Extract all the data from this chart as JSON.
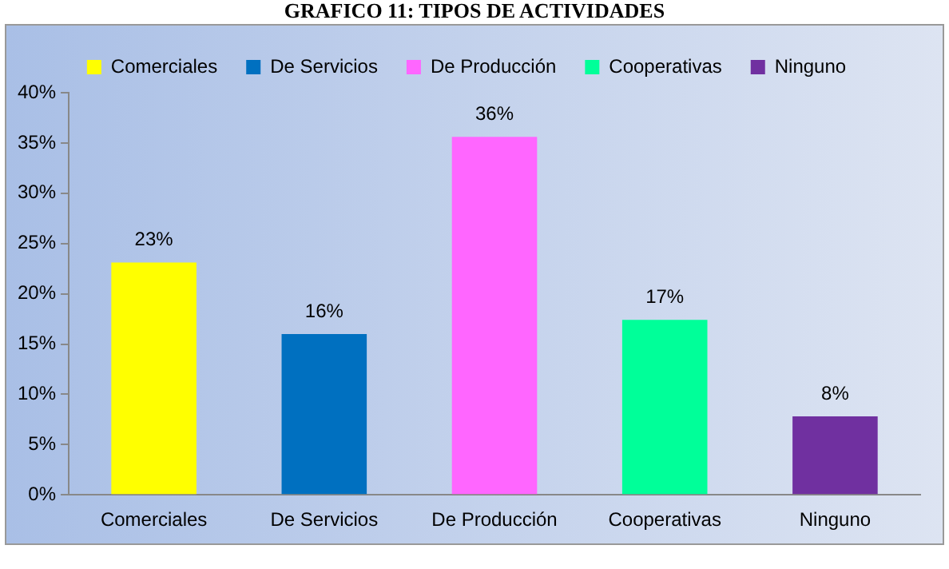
{
  "chart_data": {
    "type": "bar",
    "title": "GRAFICO 11: TIPOS DE ACTIVIDADES",
    "categories": [
      "Comerciales",
      "De Servicios",
      "De Producción",
      "Cooperativas",
      "Ninguno"
    ],
    "series": [
      {
        "name": "Comerciales",
        "color": "#ffff00",
        "values": [
          23.1,
          null,
          null,
          null,
          null
        ],
        "value_labels": [
          "23%",
          null,
          null,
          null,
          null
        ]
      },
      {
        "name": "De Servicios",
        "color": "#0070c0",
        "values": [
          null,
          16.0,
          null,
          null,
          null
        ],
        "value_labels": [
          null,
          "16%",
          null,
          null,
          null
        ]
      },
      {
        "name": "De Producción",
        "color": "#ff66ff",
        "values": [
          null,
          null,
          35.6,
          null,
          null
        ],
        "value_labels": [
          null,
          null,
          "36%",
          null,
          null
        ]
      },
      {
        "name": "Cooperativas",
        "color": "#00ff99",
        "values": [
          null,
          null,
          null,
          17.4,
          null
        ],
        "value_labels": [
          null,
          null,
          null,
          "17%",
          null
        ]
      },
      {
        "name": "Ninguno",
        "color": "#7030a0",
        "values": [
          null,
          null,
          null,
          null,
          7.8
        ],
        "value_labels": [
          null,
          null,
          null,
          null,
          "8%"
        ]
      }
    ],
    "ylim": [
      0,
      40
    ],
    "yticks": [
      {
        "value": 0,
        "label": "0%"
      },
      {
        "value": 5,
        "label": "5%"
      },
      {
        "value": 10,
        "label": "10%"
      },
      {
        "value": 15,
        "label": "15%"
      },
      {
        "value": 20,
        "label": "20%"
      },
      {
        "value": 25,
        "label": "25%"
      },
      {
        "value": 30,
        "label": "30%"
      },
      {
        "value": 35,
        "label": "35%"
      },
      {
        "value": 40,
        "label": "40%"
      }
    ],
    "grid": false,
    "legend": "top"
  }
}
